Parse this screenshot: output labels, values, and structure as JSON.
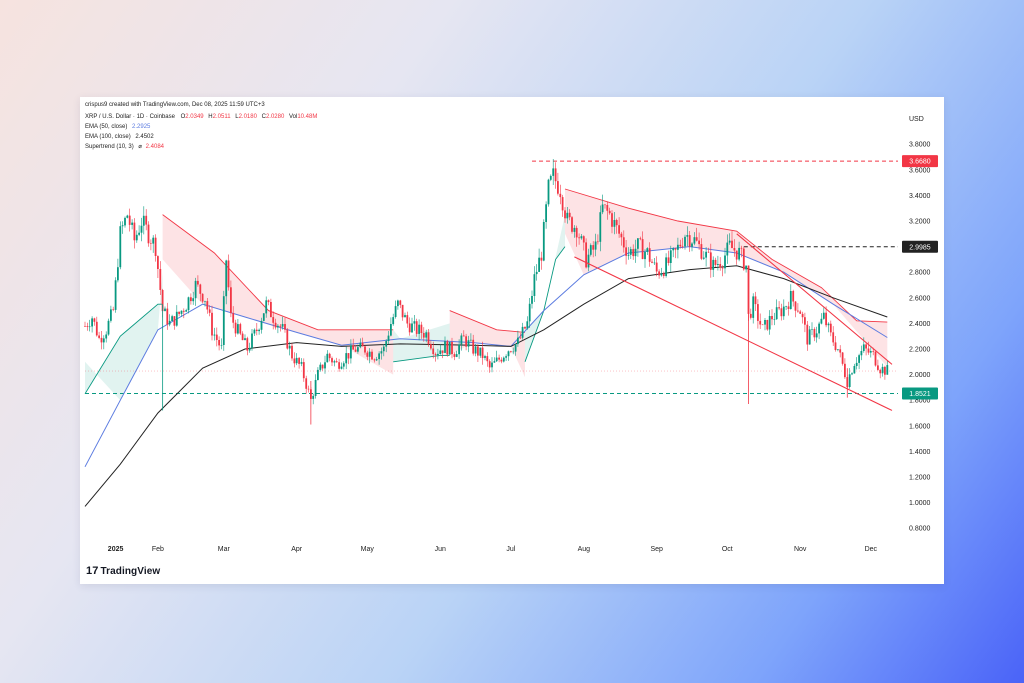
{
  "header": {
    "attribution": "crispus9 created with TradingView.com, Dec 08, 2025 11:59 UTC+3",
    "symbol": "XRP / U.S. Dollar · 1D · Coinbase",
    "ohlc": [
      {
        "label": "O",
        "value": "2.0349",
        "color": "#f23645"
      },
      {
        "label": "H",
        "value": "2.0511",
        "color": "#f23645"
      },
      {
        "label": "L",
        "value": "2.0180",
        "color": "#f23645"
      },
      {
        "label": "C",
        "value": "2.0280",
        "color": "#f23645"
      },
      {
        "label": "Vol",
        "value": "10.48M",
        "color": "#f23645"
      }
    ],
    "indicators": [
      {
        "name": "EMA (50, close)",
        "value": "2.2925",
        "color": "#5b7be0"
      },
      {
        "name": "EMA (100, close)",
        "value": "2.4502",
        "color": "#222222"
      },
      {
        "name": "Supertrend (10, 3)",
        "value": "2.4084",
        "color": "#f23645",
        "sep": "⌀"
      }
    ]
  },
  "chart_data": {
    "type": "candlestick",
    "currency": "USD",
    "ylim": [
      0.7,
      3.95
    ],
    "y_ticks": [
      3.8,
      3.6,
      3.4,
      3.2,
      3.0,
      2.8,
      2.6,
      2.4,
      2.2,
      2.0,
      1.8,
      1.6,
      1.4,
      1.2,
      1.0,
      0.8
    ],
    "x_ticks": [
      "2025",
      "Feb",
      "Mar",
      "Apr",
      "May",
      "Jun",
      "Jul",
      "Aug",
      "Sep",
      "Oct",
      "Nov",
      "Dec"
    ],
    "close_path": [
      [
        "2025-01-01",
        2.38
      ],
      [
        "2025-01-04",
        2.45
      ],
      [
        "2025-01-07",
        2.28
      ],
      [
        "2025-01-10",
        2.35
      ],
      [
        "2025-01-13",
        2.5
      ],
      [
        "2025-01-16",
        3.1
      ],
      [
        "2025-01-19",
        3.25
      ],
      [
        "2025-01-22",
        3.05
      ],
      [
        "2025-01-25",
        3.2
      ],
      [
        "2025-01-28",
        3.1
      ],
      [
        "2025-01-31",
        3.0
      ],
      [
        "2025-02-03",
        2.5
      ],
      [
        "2025-02-06",
        2.4
      ],
      [
        "2025-02-09",
        2.45
      ],
      [
        "2025-02-13",
        2.55
      ],
      [
        "2025-02-17",
        2.7
      ],
      [
        "2025-02-21",
        2.6
      ],
      [
        "2025-02-24",
        2.35
      ],
      [
        "2025-02-28",
        2.2
      ],
      [
        "2025-03-02",
        2.9
      ],
      [
        "2025-03-04",
        2.45
      ],
      [
        "2025-03-08",
        2.3
      ],
      [
        "2025-03-11",
        2.2
      ],
      [
        "2025-03-15",
        2.35
      ],
      [
        "2025-03-19",
        2.55
      ],
      [
        "2025-03-22",
        2.45
      ],
      [
        "2025-03-26",
        2.35
      ],
      [
        "2025-03-30",
        2.15
      ],
      [
        "2025-04-03",
        2.05
      ],
      [
        "2025-04-07",
        1.8
      ],
      [
        "2025-04-10",
        2.0
      ],
      [
        "2025-04-14",
        2.15
      ],
      [
        "2025-04-18",
        2.08
      ],
      [
        "2025-04-22",
        2.15
      ],
      [
        "2025-04-26",
        2.2
      ],
      [
        "2025-04-30",
        2.2
      ],
      [
        "2025-05-04",
        2.15
      ],
      [
        "2025-05-08",
        2.2
      ],
      [
        "2025-05-11",
        2.4
      ],
      [
        "2025-05-14",
        2.55
      ],
      [
        "2025-05-18",
        2.4
      ],
      [
        "2025-05-22",
        2.35
      ],
      [
        "2025-05-26",
        2.32
      ],
      [
        "2025-05-30",
        2.18
      ],
      [
        "2025-06-03",
        2.22
      ],
      [
        "2025-06-07",
        2.18
      ],
      [
        "2025-06-11",
        2.28
      ],
      [
        "2025-06-15",
        2.2
      ],
      [
        "2025-06-19",
        2.15
      ],
      [
        "2025-06-22",
        2.05
      ],
      [
        "2025-06-26",
        2.12
      ],
      [
        "2025-06-30",
        2.2
      ],
      [
        "2025-07-04",
        2.25
      ],
      [
        "2025-07-08",
        2.4
      ],
      [
        "2025-07-11",
        2.75
      ],
      [
        "2025-07-14",
        2.95
      ],
      [
        "2025-07-17",
        3.45
      ],
      [
        "2025-07-19",
        3.55
      ],
      [
        "2025-07-22",
        3.45
      ],
      [
        "2025-07-25",
        3.2
      ],
      [
        "2025-07-29",
        3.15
      ],
      [
        "2025-08-02",
        2.9
      ],
      [
        "2025-08-06",
        3.0
      ],
      [
        "2025-08-09",
        3.3
      ],
      [
        "2025-08-12",
        3.25
      ],
      [
        "2025-08-16",
        3.1
      ],
      [
        "2025-08-20",
        2.95
      ],
      [
        "2025-08-24",
        3.0
      ],
      [
        "2025-08-28",
        2.95
      ],
      [
        "2025-09-01",
        2.8
      ],
      [
        "2025-09-05",
        2.85
      ],
      [
        "2025-09-09",
        2.95
      ],
      [
        "2025-09-13",
        3.1
      ],
      [
        "2025-09-17",
        3.05
      ],
      [
        "2025-09-21",
        2.95
      ],
      [
        "2025-09-25",
        2.85
      ],
      [
        "2025-09-29",
        2.9
      ],
      [
        "2025-10-02",
        3.0
      ],
      [
        "2025-10-06",
        2.95
      ],
      [
        "2025-10-09",
        2.85
      ],
      [
        "2025-10-10",
        2.45
      ],
      [
        "2025-10-12",
        2.55
      ],
      [
        "2025-10-16",
        2.35
      ],
      [
        "2025-10-20",
        2.45
      ],
      [
        "2025-10-24",
        2.5
      ],
      [
        "2025-10-28",
        2.6
      ],
      [
        "2025-11-01",
        2.5
      ],
      [
        "2025-11-04",
        2.28
      ],
      [
        "2025-11-08",
        2.35
      ],
      [
        "2025-11-11",
        2.45
      ],
      [
        "2025-11-14",
        2.3
      ],
      [
        "2025-11-17",
        2.2
      ],
      [
        "2025-11-21",
        1.95
      ],
      [
        "2025-11-24",
        2.1
      ],
      [
        "2025-11-28",
        2.2
      ],
      [
        "2025-12-02",
        2.15
      ],
      [
        "2025-12-05",
        2.05
      ],
      [
        "2025-12-08",
        2.03
      ]
    ],
    "series": [
      {
        "name": "EMA (50, close)",
        "color": "#5b7be0",
        "points": [
          [
            "2025-01-01",
            1.28
          ],
          [
            "2025-01-16",
            1.8
          ],
          [
            "2025-02-01",
            2.35
          ],
          [
            "2025-02-20",
            2.55
          ],
          [
            "2025-03-10",
            2.45
          ],
          [
            "2025-04-01",
            2.33
          ],
          [
            "2025-04-20",
            2.23
          ],
          [
            "2025-05-15",
            2.28
          ],
          [
            "2025-06-15",
            2.25
          ],
          [
            "2025-07-01",
            2.22
          ],
          [
            "2025-07-15",
            2.5
          ],
          [
            "2025-08-01",
            2.78
          ],
          [
            "2025-08-20",
            2.95
          ],
          [
            "2025-09-15",
            3.0
          ],
          [
            "2025-10-05",
            2.95
          ],
          [
            "2025-10-25",
            2.8
          ],
          [
            "2025-11-15",
            2.55
          ],
          [
            "2025-12-08",
            2.29
          ]
        ]
      },
      {
        "name": "EMA (100, close)",
        "color": "#222222",
        "points": [
          [
            "2025-01-01",
            0.97
          ],
          [
            "2025-01-16",
            1.3
          ],
          [
            "2025-02-01",
            1.7
          ],
          [
            "2025-02-20",
            2.05
          ],
          [
            "2025-03-10",
            2.2
          ],
          [
            "2025-04-01",
            2.25
          ],
          [
            "2025-04-20",
            2.22
          ],
          [
            "2025-05-15",
            2.24
          ],
          [
            "2025-06-15",
            2.23
          ],
          [
            "2025-07-01",
            2.22
          ],
          [
            "2025-07-15",
            2.35
          ],
          [
            "2025-08-01",
            2.55
          ],
          [
            "2025-08-20",
            2.75
          ],
          [
            "2025-09-15",
            2.82
          ],
          [
            "2025-10-05",
            2.85
          ],
          [
            "2025-10-25",
            2.75
          ],
          [
            "2025-11-15",
            2.6
          ],
          [
            "2025-12-08",
            2.45
          ]
        ]
      }
    ],
    "supertrend": [
      {
        "trend": "up",
        "points": [
          [
            "2025-01-01",
            1.85
          ],
          [
            "2025-01-16",
            2.3
          ],
          [
            "2025-02-01",
            2.55
          ],
          [
            "2025-02-03",
            2.55
          ]
        ]
      },
      {
        "trend": "down",
        "points": [
          [
            "2025-02-03",
            3.25
          ],
          [
            "2025-02-25",
            2.95
          ],
          [
            "2025-03-20",
            2.5
          ],
          [
            "2025-04-10",
            2.35
          ],
          [
            "2025-05-10",
            2.35
          ],
          [
            "2025-05-12",
            2.35
          ]
        ]
      },
      {
        "trend": "up",
        "points": [
          [
            "2025-05-12",
            2.1
          ],
          [
            "2025-06-01",
            2.15
          ],
          [
            "2025-06-05",
            2.15
          ]
        ]
      },
      {
        "trend": "down",
        "points": [
          [
            "2025-06-05",
            2.5
          ],
          [
            "2025-06-25",
            2.35
          ],
          [
            "2025-07-07",
            2.33
          ]
        ]
      },
      {
        "trend": "up",
        "points": [
          [
            "2025-07-07",
            2.1
          ],
          [
            "2025-07-15",
            2.5
          ],
          [
            "2025-07-20",
            2.9
          ],
          [
            "2025-07-24",
            3.0
          ]
        ]
      },
      {
        "trend": "down",
        "points": [
          [
            "2025-07-24",
            3.45
          ],
          [
            "2025-08-20",
            3.3
          ],
          [
            "2025-09-10",
            3.2
          ],
          [
            "2025-10-05",
            3.12
          ],
          [
            "2025-10-20",
            2.9
          ],
          [
            "2025-11-10",
            2.68
          ],
          [
            "2025-11-25",
            2.42
          ],
          [
            "2025-12-08",
            2.41
          ]
        ]
      }
    ],
    "levels": [
      {
        "value": 3.668,
        "label": "3.6680",
        "color": "#f23645",
        "style": "dashed",
        "from": "2025-07-10"
      },
      {
        "value": 2.9985,
        "label": "2.9985",
        "color": "#222222",
        "style": "dashed",
        "from": "2025-10-08"
      },
      {
        "value": 1.8521,
        "label": "1.8521",
        "color": "#089981",
        "style": "dashed",
        "from": "2025-01-01"
      }
    ],
    "trendlines": [
      {
        "color": "#f23645",
        "from": [
          "2025-10-05",
          3.1
        ],
        "to": [
          "2025-12-10",
          2.08
        ]
      },
      {
        "color": "#f23645",
        "from": [
          "2025-07-28",
          2.92
        ],
        "to": [
          "2025-12-10",
          1.72
        ]
      }
    ],
    "last_price": 2.028
  },
  "footer": {
    "logo": "TradingView"
  }
}
